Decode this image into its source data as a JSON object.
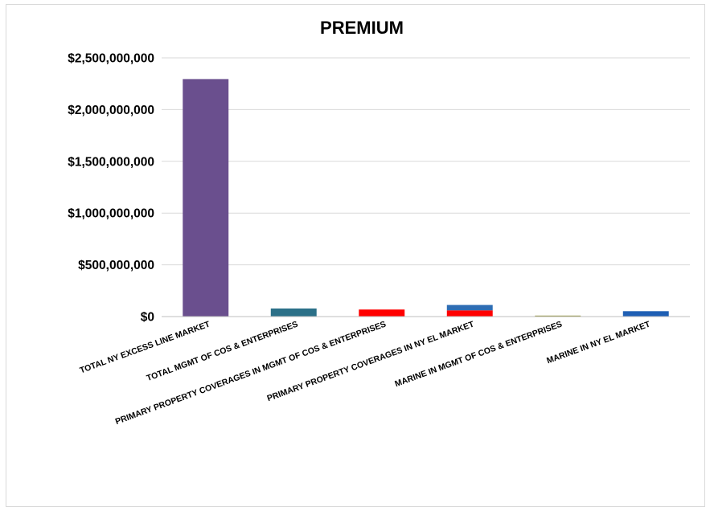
{
  "chart_data": {
    "type": "bar",
    "title": "PREMIUM",
    "xlabel": "",
    "ylabel": "",
    "ylim": [
      0,
      2500000000
    ],
    "yticks": [
      0,
      500000000,
      1000000000,
      1500000000,
      2000000000,
      2500000000
    ],
    "ytick_labels": [
      "$0",
      "$500,000,000",
      "$1,000,000,000",
      "$1,500,000,000",
      "$2,000,000,000",
      "$2,500,000,000"
    ],
    "grid": true,
    "legend": "none",
    "categories": [
      "TOTAL NY EXCESS LINE MARKET",
      "TOTAL MGMT OF COS & ENTERPRISES",
      "PRIMARY PROPERTY COVERAGES IN MGMT OF COS & ENTERPRISES",
      "PRIMARY PROPERTY COVERAGES IN NY EL MARKET",
      "MARINE IN MGMT OF COS & ENTERPRISES",
      "MARINE IN NY EL MARKET"
    ],
    "stacks": [
      [
        {
          "value": 2295000000,
          "color": "#6a4f8e"
        }
      ],
      [
        {
          "value": 78000000,
          "color": "#2b7088"
        }
      ],
      [
        {
          "value": 68000000,
          "color": "#ff0000"
        }
      ],
      [
        {
          "value": 60000000,
          "color": "#ff0000"
        },
        {
          "value": 52000000,
          "color": "#2e6db4"
        }
      ],
      [
        {
          "value": 4000000,
          "color": "#8c8c2a"
        }
      ],
      [
        {
          "value": 52000000,
          "color": "#1f5fb4"
        }
      ]
    ]
  }
}
